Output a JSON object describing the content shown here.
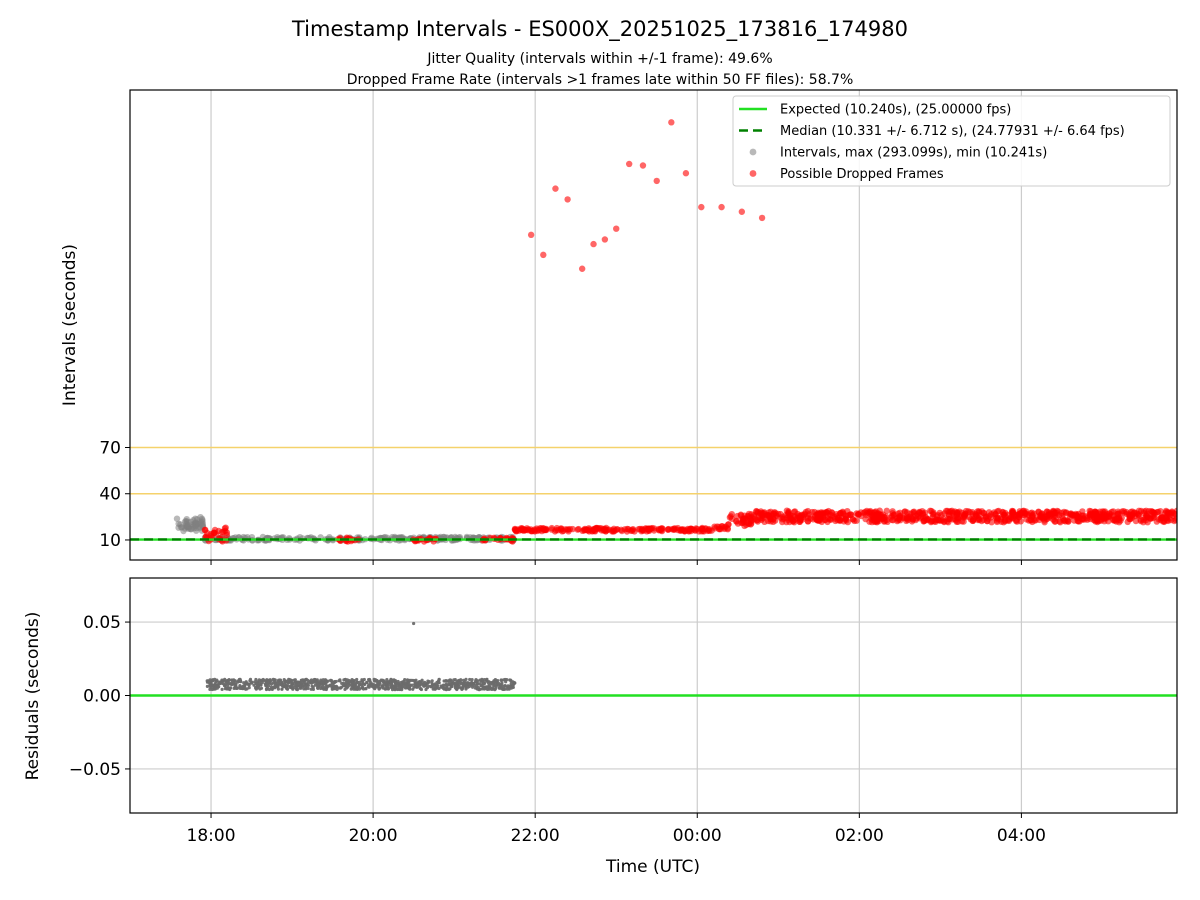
{
  "title": "Timestamp Intervals - ES000X_20251025_173816_174980",
  "subtitle_lines": [
    "Jitter Quality (intervals within +/-1 frame): 49.6%",
    "Dropped Frame Rate (intervals >1 frames late within 50 FF files): 58.7%"
  ],
  "colors": {
    "expected": "#22e022",
    "median": "#008000",
    "intervals": "#808080",
    "dropped": "#ff0000",
    "threshold": "#f5d26b",
    "grid": "#cccccc",
    "residuals": "#6b6b6b"
  },
  "chart_data": [
    {
      "type": "scatter",
      "panel": "top",
      "ylabel": "Intervals (seconds)",
      "xlabel": "",
      "x_unit": "hours since 17:00 UTC on the same night",
      "xlim": [
        17.0,
        29.92
      ],
      "ylim": [
        -3,
        302
      ],
      "yticks": [
        10,
        40,
        70
      ],
      "threshold_lines": [
        40,
        70
      ],
      "expected_line": 10.24,
      "median_line": 10.331,
      "grid": "x",
      "legend_position": "top-right",
      "legend": [
        {
          "key": "expected",
          "label": "Expected (10.240s), (25.00000 fps)"
        },
        {
          "key": "median",
          "label": "Median (10.331 +/- 6.712 s), (24.77931 +/- 6.64 fps)"
        },
        {
          "key": "intervals",
          "label": "Intervals, max (293.099s), min (10.241s)"
        },
        {
          "key": "dropped",
          "label": "Possible Dropped Frames"
        }
      ],
      "series": [
        {
          "name": "Intervals, max (293.099s), min (10.241s)",
          "kind": "intervals",
          "points": [
            [
              17.6,
              20.5
            ],
            [
              17.64,
              18.2
            ],
            [
              17.68,
              21.9
            ],
            [
              17.72,
              19.6
            ],
            [
              17.75,
              17.1
            ],
            [
              17.78,
              22.8
            ],
            [
              17.81,
              19.0
            ],
            [
              17.84,
              21.3
            ],
            [
              17.87,
              24.8
            ],
            [
              17.9,
              18.4
            ],
            [
              17.66,
              15.8
            ],
            [
              17.7,
              23.5
            ]
          ],
          "clusters": [
            {
              "x_start": 17.58,
              "x_end": 17.92,
              "y_min": 15.5,
              "y_max": 24.5,
              "count": 40
            },
            {
              "x_start": 17.92,
              "x_end": 21.75,
              "y_min": 9.6,
              "y_max": 12.0,
              "count": 260
            }
          ]
        },
        {
          "name": "Possible Dropped Frames",
          "kind": "dropped",
          "points": [
            [
              21.95,
              208
            ],
            [
              22.1,
              195
            ],
            [
              22.25,
              238
            ],
            [
              22.4,
              231
            ],
            [
              22.58,
              186
            ],
            [
              22.72,
              202
            ],
            [
              22.86,
              205
            ],
            [
              23.0,
              212
            ],
            [
              23.16,
              254
            ],
            [
              23.33,
              253
            ],
            [
              23.5,
              243
            ],
            [
              23.68,
              281
            ],
            [
              23.86,
              248
            ],
            [
              24.05,
              226
            ],
            [
              24.3,
              226
            ],
            [
              24.55,
              223
            ],
            [
              24.8,
              219
            ]
          ],
          "clusters": [
            {
              "x_start": 17.92,
              "x_end": 18.2,
              "y_min": 9.0,
              "y_max": 18.0,
              "count": 30
            },
            {
              "x_start": 19.55,
              "x_end": 19.82,
              "y_min": 9.0,
              "y_max": 11.5,
              "count": 16
            },
            {
              "x_start": 20.48,
              "x_end": 20.8,
              "y_min": 9.0,
              "y_max": 11.5,
              "count": 16
            },
            {
              "x_start": 21.35,
              "x_end": 21.75,
              "y_min": 9.0,
              "y_max": 11.5,
              "count": 22
            },
            {
              "x_start": 21.75,
              "x_end": 24.2,
              "y_min": 15.5,
              "y_max": 17.8,
              "count": 200
            },
            {
              "x_start": 24.2,
              "x_end": 24.38,
              "y_min": 16.5,
              "y_max": 19.0,
              "count": 14
            },
            {
              "x_start": 24.38,
              "x_end": 24.7,
              "y_min": 19.0,
              "y_max": 27.0,
              "count": 40
            },
            {
              "x_start": 24.7,
              "x_end": 29.92,
              "y_min": 21.5,
              "y_max": 29.0,
              "count": 760
            }
          ]
        }
      ]
    },
    {
      "type": "scatter",
      "panel": "bottom",
      "ylabel": "Residuals (seconds)",
      "xlabel": "Time (UTC)",
      "x_unit": "hours since 17:00 UTC on the same night",
      "xlim": [
        17.0,
        29.92
      ],
      "ylim": [
        -0.08,
        0.08
      ],
      "yticks": [
        -0.05,
        0.0,
        0.05
      ],
      "ytick_labels": [
        "−0.05",
        "0.00",
        "0.05"
      ],
      "xticks": [
        18,
        20,
        22,
        24,
        26,
        28
      ],
      "xtick_labels": [
        "18:00",
        "20:00",
        "22:00",
        "00:00",
        "02:00",
        "04:00"
      ],
      "zero_line": 0.0,
      "grid": "both",
      "series": [
        {
          "name": "Residuals",
          "kind": "residuals",
          "points": [
            [
              20.5,
              0.049
            ]
          ],
          "clusters": [
            {
              "x_start": 17.95,
              "x_end": 21.75,
              "y_min": 0.004,
              "y_max": 0.011,
              "count": 950
            }
          ]
        }
      ]
    }
  ]
}
